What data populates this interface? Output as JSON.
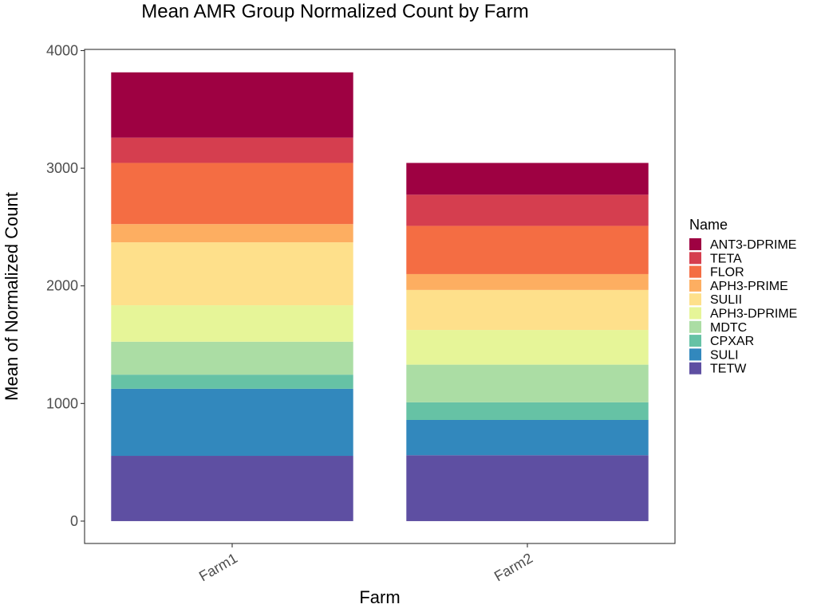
{
  "chart_data": {
    "type": "bar",
    "stacked": true,
    "title": "Mean AMR Group Normalized Count by Farm",
    "xlabel": "Farm",
    "ylabel": "Mean of Normalized Count",
    "categories": [
      "Farm1",
      "Farm2"
    ],
    "ylim": [
      -190,
      4010
    ],
    "yticks": [
      0,
      1000,
      2000,
      3000,
      4000
    ],
    "yticks_labels": [
      "0",
      "1000",
      "2000",
      "3000",
      "4000"
    ],
    "grid": false,
    "legend": {
      "title": "Name",
      "placement": "right",
      "order": [
        "ANT3-DPRIME",
        "TETA",
        "FLOR",
        "APH3-PRIME",
        "SULII",
        "APH3-DPRIME",
        "MDTC",
        "CPXAR",
        "SULI",
        "TETW"
      ]
    },
    "stack_order_bottom_to_top": [
      "TETW",
      "SULI",
      "CPXAR",
      "MDTC",
      "APH3-DPRIME",
      "SULII",
      "APH3-PRIME",
      "FLOR",
      "TETA",
      "ANT3-DPRIME"
    ],
    "series": [
      {
        "name": "ANT3-DPRIME",
        "color": "#9E0142",
        "values": [
          555,
          270
        ]
      },
      {
        "name": "TETA",
        "color": "#D53E4F",
        "values": [
          215,
          265
        ]
      },
      {
        "name": "FLOR",
        "color": "#F46D43",
        "values": [
          520,
          410
        ]
      },
      {
        "name": "APH3-PRIME",
        "color": "#FDAE61",
        "values": [
          155,
          135
        ]
      },
      {
        "name": "SULII",
        "color": "#FEE08B",
        "values": [
          535,
          340
        ]
      },
      {
        "name": "APH3-DPRIME",
        "color": "#E6F598",
        "values": [
          310,
          295
        ]
      },
      {
        "name": "MDTC",
        "color": "#ABDDA4",
        "values": [
          280,
          320
        ]
      },
      {
        "name": "CPXAR",
        "color": "#66C2A5",
        "values": [
          120,
          150
        ]
      },
      {
        "name": "SULI",
        "color": "#3288BD",
        "values": [
          570,
          300
        ]
      },
      {
        "name": "TETW",
        "color": "#5E4FA2",
        "values": [
          555,
          560
        ]
      }
    ]
  }
}
